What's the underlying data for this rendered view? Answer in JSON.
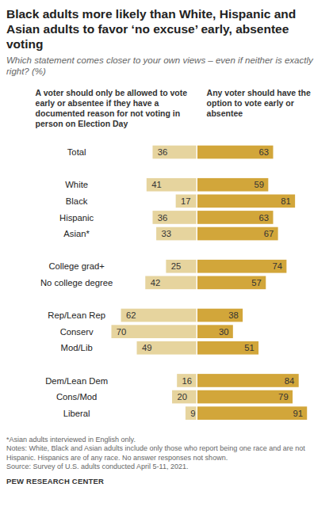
{
  "chart_data": {
    "type": "bar",
    "orientation": "horizontal",
    "data_labels": true,
    "tick_labels": "y",
    "title": "Black adults more likely than White, Hispanic and Asian adults to favor ‘no excuse’ early, absentee voting",
    "subtitle": "Which statement comes closer to your own views – even if neither is exactly right? (%)",
    "categories": [
      "Total",
      null,
      "White",
      "Black",
      "Hispanic",
      "Asian*",
      null,
      "College grad+",
      "No college degree",
      null,
      "Rep/Lean Rep",
      "Conserv",
      "Mod/Lib",
      null,
      "Dem/Lean Dem",
      "Cons/Mod",
      "Liberal"
    ],
    "series": [
      {
        "name": "A voter should only be allowed to vote early or absentee if they have a documented reason for not voting in person on Election Day",
        "color": "#e6d49e",
        "values": [
          36,
          null,
          41,
          17,
          36,
          33,
          null,
          25,
          42,
          null,
          62,
          70,
          49,
          null,
          16,
          20,
          9
        ]
      },
      {
        "name": "Any voter should have the option to vote early or absentee",
        "color": "#d2a63a",
        "values": [
          63,
          null,
          59,
          81,
          63,
          67,
          null,
          74,
          57,
          null,
          38,
          30,
          51,
          null,
          84,
          79,
          91
        ]
      }
    ],
    "xlim": [
      -70,
      91
    ],
    "notes": [
      "*Asian adults interviewed in English only.",
      "Notes: White, Black and Asian adults include only those who report being one race and are not Hispanic. Hispanics are of any race. No answer responses not shown.",
      "Source: Survey of U.S. adults conducted April 5-11, 2021."
    ],
    "credit": "PEW RESEARCH CENTER"
  }
}
